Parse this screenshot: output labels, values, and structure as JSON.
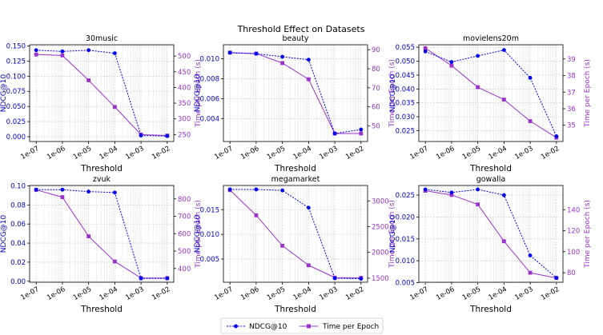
{
  "chart_data": {
    "type": "line",
    "title": "Threshold Effect on Datasets",
    "x": [
      "1e-07",
      "1e-06",
      "1e-05",
      "1e-04",
      "1e-03",
      "1e-02"
    ],
    "xlabel": "Threshold",
    "ylabel_left": "NDCG@10",
    "ylabel_right": "Time per Epoch (s)",
    "colors": {
      "ndcg": "#0000ee",
      "time": "#9933cc"
    },
    "legend": {
      "position": "bottom-center",
      "entries": [
        "NDCG@10",
        "Time per Epoch"
      ]
    },
    "panels": [
      {
        "title": "30music",
        "ndcg": [
          0.143,
          0.141,
          0.143,
          0.138,
          0.002,
          0.001
        ],
        "time": [
          505,
          502,
          423,
          338,
          250,
          247
        ],
        "ylim_left": [
          -0.008,
          0.152
        ],
        "yticks_left": [
          "0.000",
          "0.025",
          "0.050",
          "0.075",
          "0.100",
          "0.125",
          "0.150"
        ],
        "ylim_right": [
          228,
          536
        ],
        "yticks_right": [
          "250",
          "300",
          "350",
          "400",
          "450",
          "500"
        ]
      },
      {
        "title": "beauty",
        "ndcg": [
          0.0106,
          0.0105,
          0.0102,
          0.0099,
          0.0025,
          0.0029
        ],
        "time": [
          88.5,
          88.0,
          83.0,
          74.5,
          46.0,
          46.0
        ],
        "ylim_left": [
          0.0017,
          0.0114
        ],
        "yticks_left": [
          "0.004",
          "0.006",
          "0.008",
          "0.010"
        ],
        "ylim_right": [
          41.8,
          92.6
        ],
        "yticks_right": [
          "50",
          "60",
          "70",
          "80",
          "90"
        ]
      },
      {
        "title": "movielens20m",
        "ndcg": [
          0.0535,
          0.0497,
          0.0519,
          0.054,
          0.044,
          0.023
        ],
        "time": [
          39.65,
          38.6,
          37.3,
          36.55,
          35.25,
          34.25
        ],
        "ylim_left": [
          0.0211,
          0.0559
        ],
        "yticks_left": [
          "0.025",
          "0.030",
          "0.035",
          "0.040",
          "0.045",
          "0.050",
          "0.055"
        ],
        "ylim_right": [
          34.02,
          39.86
        ],
        "yticks_right": [
          "35",
          "36",
          "37",
          "38",
          "39"
        ]
      },
      {
        "title": "zvuk",
        "ndcg": [
          0.096,
          0.096,
          0.094,
          0.093,
          0.003,
          0.003
        ],
        "time": [
          852,
          810,
          585,
          440,
          345,
          345
        ],
        "ylim_left": [
          -0.001,
          0.1004
        ],
        "yticks_left": [
          "0.00",
          "0.02",
          "0.04",
          "0.06",
          "0.08",
          "0.10"
        ],
        "ylim_right": [
          321,
          877
        ],
        "yticks_right": [
          "400",
          "500",
          "600",
          "700",
          "800"
        ]
      },
      {
        "title": "megamarket",
        "ndcg": [
          0.0191,
          0.0191,
          0.0189,
          0.0154,
          0.0011,
          0.001
        ],
        "time": [
          3210,
          2720,
          2130,
          1750,
          1510,
          1505
        ],
        "ylim_left": [
          0.0003,
          0.0199
        ],
        "yticks_left": [
          "0.005",
          "0.010",
          "0.015"
        ],
        "ylim_right": [
          1420,
          3300
        ],
        "yticks_right": [
          "1500",
          "2000",
          "2500",
          "3000"
        ]
      },
      {
        "title": "gowalla",
        "ndcg": [
          0.0263,
          0.0256,
          0.0263,
          0.025,
          0.0112,
          0.0061
        ],
        "time": [
          158,
          154,
          145,
          110,
          80,
          75
        ],
        "ylim_left": [
          0.0051,
          0.0272
        ],
        "yticks_left": [
          "0.005",
          "0.010",
          "0.015",
          "0.020",
          "0.025"
        ],
        "ylim_right": [
          71,
          163
        ],
        "yticks_right": [
          "80",
          "100",
          "120",
          "140"
        ]
      }
    ]
  }
}
